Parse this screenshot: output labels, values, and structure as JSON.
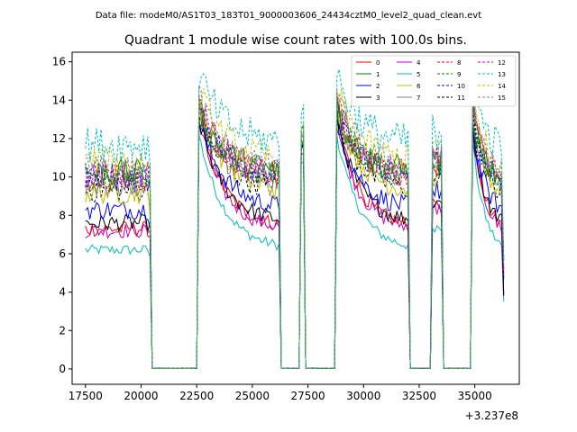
{
  "chart_data": {
    "type": "line",
    "header": "Data file: modeM0/AS1T03_183T01_9000003606_24434cztM0_level2_quad_clean.evt",
    "title": "Quadrant 1 module wise count rates with 100.0s bins.",
    "xlabel": "",
    "ylabel": "",
    "x_offset_label": "+3.237e8",
    "xlim": [
      16900,
      37000
    ],
    "ylim": [
      -0.8,
      16.5
    ],
    "x_ticks": [
      17500,
      20000,
      22500,
      25000,
      27500,
      30000,
      32500,
      35000
    ],
    "x_tick_labels": [
      "17500",
      "20000",
      "22500",
      "25000",
      "27500",
      "30000",
      "32500",
      "35000"
    ],
    "y_ticks": [
      0,
      2,
      4,
      6,
      8,
      10,
      12,
      14,
      16
    ],
    "y_tick_labels": [
      "0",
      "2",
      "4",
      "6",
      "8",
      "10",
      "12",
      "14",
      "16"
    ],
    "bin_seconds": 100,
    "segments": [
      {
        "start": 17500,
        "end": 20400,
        "kind": "on",
        "profile": "noisy_flat"
      },
      {
        "start": 20500,
        "end": 22500,
        "kind": "gap"
      },
      {
        "start": 22600,
        "end": 26200,
        "kind": "on",
        "profile": "decay"
      },
      {
        "start": 26300,
        "end": 27100,
        "kind": "gap"
      },
      {
        "start": 27200,
        "end": 27300,
        "kind": "on",
        "profile": "spike"
      },
      {
        "start": 27400,
        "end": 28700,
        "kind": "gap"
      },
      {
        "start": 28800,
        "end": 32000,
        "kind": "on",
        "profile": "decay"
      },
      {
        "start": 32100,
        "end": 33000,
        "kind": "gap"
      },
      {
        "start": 33100,
        "end": 33500,
        "kind": "on",
        "profile": "short"
      },
      {
        "start": 33600,
        "end": 34800,
        "kind": "gap"
      },
      {
        "start": 34900,
        "end": 36300,
        "kind": "on",
        "profile": "decay_end"
      }
    ],
    "series": [
      {
        "name": "0",
        "color": "#ff0000",
        "dash": "solid",
        "base": 7.3,
        "peak": 13.2
      },
      {
        "name": "1",
        "color": "#008000",
        "dash": "solid",
        "base": 10.2,
        "peak": 13.5
      },
      {
        "name": "2",
        "color": "#0000ff",
        "dash": "solid",
        "base": 8.3,
        "peak": 13.0
      },
      {
        "name": "3",
        "color": "#000000",
        "dash": "solid",
        "base": 7.6,
        "peak": 13.0
      },
      {
        "name": "4",
        "color": "#bf00bf",
        "dash": "solid",
        "base": 7.2,
        "peak": 12.8
      },
      {
        "name": "5",
        "color": "#00bfbf",
        "dash": "solid",
        "base": 6.2,
        "peak": 12.2
      },
      {
        "name": "6",
        "color": "#bfbf00",
        "dash": "solid",
        "base": 9.2,
        "peak": 13.8
      },
      {
        "name": "7",
        "color": "#808080",
        "dash": "solid",
        "base": 9.6,
        "peak": 13.5
      },
      {
        "name": "8",
        "color": "#ff0000",
        "dash": "dashed",
        "base": 9.9,
        "peak": 13.8
      },
      {
        "name": "9",
        "color": "#008000",
        "dash": "dashed",
        "base": 10.0,
        "peak": 14.0
      },
      {
        "name": "10",
        "color": "#0000ff",
        "dash": "dashed",
        "base": 10.0,
        "peak": 13.6
      },
      {
        "name": "11",
        "color": "#000000",
        "dash": "dashed",
        "base": 9.3,
        "peak": 13.2
      },
      {
        "name": "12",
        "color": "#bf00bf",
        "dash": "dashed",
        "base": 10.1,
        "peak": 13.9
      },
      {
        "name": "13",
        "color": "#00bfbf",
        "dash": "dashed",
        "base": 11.7,
        "peak": 15.4
      },
      {
        "name": "14",
        "color": "#bfbf00",
        "dash": "dashed",
        "base": 10.8,
        "peak": 14.5
      },
      {
        "name": "15",
        "color": "#808080",
        "dash": "dashed",
        "base": 10.4,
        "peak": 14.2
      }
    ],
    "legend_position": "top-right",
    "legend_columns": 4,
    "grid": false
  }
}
